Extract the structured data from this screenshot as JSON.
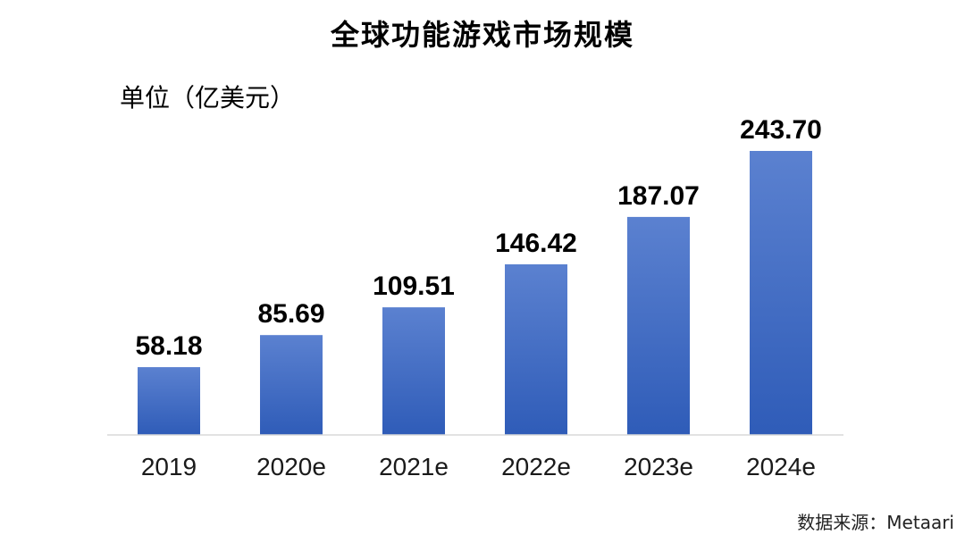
{
  "chart_data": {
    "type": "bar",
    "title": "全球功能游戏市场规模",
    "unit_label": "单位（亿美元）",
    "categories": [
      "2019",
      "2020e",
      "2021e",
      "2022e",
      "2023e",
      "2024e"
    ],
    "values": [
      58.18,
      85.69,
      109.51,
      146.42,
      187.07,
      243.7
    ],
    "value_labels": [
      "58.18",
      "85.69",
      "109.51",
      "146.42",
      "187.07",
      "243.70"
    ],
    "ylim": [
      0,
      243.7
    ],
    "grid": false,
    "legend": "none",
    "bar_color_top": "#5b81d0",
    "bar_color_bottom": "#2f5cb8",
    "axis_color": "#d9d9d9"
  },
  "source": "数据来源：Metaari"
}
